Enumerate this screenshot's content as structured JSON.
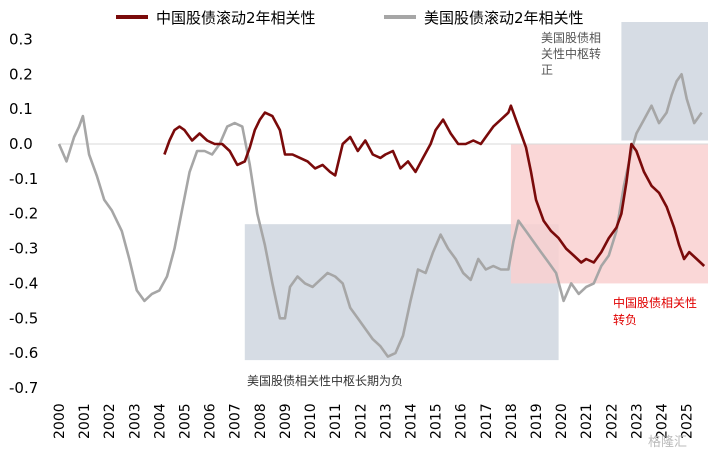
{
  "colors": {
    "cn": "#7a0a0a",
    "us": "#a6a6a6",
    "gray_box": "#d6dce4",
    "red_box": "#f9d0d0",
    "zero_line": "#d9d9d9",
    "neg_annotation": "#e00000"
  },
  "legend": {
    "cn": "中国股债滚动2年相关性",
    "us": "美国股债滚动2年相关性"
  },
  "annotations": {
    "us_positive_lines": [
      "美国股债相",
      "关性中枢转",
      "正"
    ],
    "us_negative": "美国股债相关性中枢长期为负",
    "cn_negative_lines": [
      "中国股债相关性",
      "转负"
    ]
  },
  "watermark": "格隆汇",
  "chart_data": {
    "type": "line",
    "legend_position": "top",
    "ylim": [
      -0.7,
      0.35
    ],
    "yticks": [
      "0.3",
      "0.2",
      "0.1",
      "0.0",
      "-0.1",
      "-0.2",
      "-0.3",
      "-0.4",
      "-0.5",
      "-0.6",
      "-0.7"
    ],
    "xlim": [
      2000.0,
      2025.85
    ],
    "xticks": [
      "2000",
      "2001",
      "2002",
      "2003",
      "2004",
      "2005",
      "2006",
      "2007",
      "2008",
      "2009",
      "2010",
      "2011",
      "2012",
      "2013",
      "2014",
      "2015",
      "2016",
      "2017",
      "2018",
      "2019",
      "2020",
      "2021",
      "2022",
      "2023",
      "2024",
      "2025"
    ],
    "grid": false,
    "shaded_regions": [
      {
        "x": [
          2007.4,
          2019.9
        ],
        "y": [
          -0.62,
          -0.23
        ],
        "color": "gray"
      },
      {
        "x": [
          2022.4,
          2025.85
        ],
        "y": [
          0.01,
          0.4
        ],
        "color": "gray"
      },
      {
        "x": [
          2018.0,
          2025.85
        ],
        "y": [
          -0.4,
          0.0
        ],
        "color": "red"
      }
    ],
    "series": [
      {
        "name": "中国股债滚动2年相关性",
        "x": [
          2004.2,
          2004.4,
          2004.6,
          2004.8,
          2005.0,
          2005.3,
          2005.6,
          2005.9,
          2006.2,
          2006.5,
          2006.8,
          2007.1,
          2007.4,
          2007.6,
          2007.8,
          2008.0,
          2008.2,
          2008.5,
          2008.8,
          2009.0,
          2009.3,
          2009.6,
          2009.9,
          2010.2,
          2010.5,
          2010.8,
          2011.0,
          2011.3,
          2011.6,
          2011.9,
          2012.2,
          2012.5,
          2012.8,
          2013.0,
          2013.3,
          2013.6,
          2013.9,
          2014.2,
          2014.5,
          2014.8,
          2015.0,
          2015.3,
          2015.6,
          2015.9,
          2016.2,
          2016.5,
          2016.8,
          2017.0,
          2017.3,
          2017.6,
          2017.9,
          2018.0,
          2018.2,
          2018.4,
          2018.6,
          2018.8,
          2019.0,
          2019.3,
          2019.6,
          2019.9,
          2020.2,
          2020.5,
          2020.8,
          2021.0,
          2021.3,
          2021.6,
          2021.9,
          2022.2,
          2022.4,
          2022.6,
          2022.8,
          2023.0,
          2023.3,
          2023.6,
          2023.9,
          2024.2,
          2024.5,
          2024.7,
          2024.9,
          2025.1,
          2025.4,
          2025.7
        ],
        "y": [
          -0.03,
          0.01,
          0.04,
          0.05,
          0.04,
          0.01,
          0.03,
          0.01,
          0.0,
          0.0,
          -0.02,
          -0.06,
          -0.05,
          -0.01,
          0.04,
          0.07,
          0.09,
          0.08,
          0.04,
          -0.03,
          -0.03,
          -0.04,
          -0.05,
          -0.07,
          -0.06,
          -0.08,
          -0.09,
          0.0,
          0.02,
          -0.02,
          0.01,
          -0.03,
          -0.04,
          -0.03,
          -0.02,
          -0.07,
          -0.05,
          -0.08,
          -0.04,
          0.0,
          0.04,
          0.07,
          0.03,
          0.0,
          0.0,
          0.01,
          0.0,
          0.02,
          0.05,
          0.07,
          0.09,
          0.11,
          0.07,
          0.03,
          -0.01,
          -0.08,
          -0.16,
          -0.22,
          -0.25,
          -0.27,
          -0.3,
          -0.32,
          -0.34,
          -0.33,
          -0.34,
          -0.31,
          -0.27,
          -0.24,
          -0.2,
          -0.11,
          0.0,
          -0.02,
          -0.08,
          -0.12,
          -0.14,
          -0.18,
          -0.24,
          -0.29,
          -0.33,
          -0.31,
          -0.33,
          -0.35
        ]
      },
      {
        "name": "美国股债滚动2年相关性",
        "x": [
          2000.0,
          2000.3,
          2000.6,
          2000.8,
          2000.95,
          2001.2,
          2001.5,
          2001.8,
          2002.1,
          2002.5,
          2002.8,
          2003.1,
          2003.4,
          2003.7,
          2004.0,
          2004.3,
          2004.6,
          2004.9,
          2005.2,
          2005.5,
          2005.8,
          2006.1,
          2006.4,
          2006.7,
          2007.0,
          2007.3,
          2007.6,
          2007.9,
          2008.2,
          2008.5,
          2008.8,
          2009.0,
          2009.2,
          2009.5,
          2009.8,
          2010.1,
          2010.4,
          2010.7,
          2011.0,
          2011.3,
          2011.6,
          2011.9,
          2012.2,
          2012.5,
          2012.8,
          2013.1,
          2013.4,
          2013.7,
          2014.0,
          2014.3,
          2014.6,
          2014.9,
          2015.2,
          2015.5,
          2015.8,
          2016.1,
          2016.4,
          2016.7,
          2017.0,
          2017.3,
          2017.6,
          2017.9,
          2018.1,
          2018.3,
          2018.6,
          2018.9,
          2019.2,
          2019.5,
          2019.8,
          2020.1,
          2020.4,
          2020.7,
          2021.0,
          2021.3,
          2021.6,
          2021.9,
          2022.2,
          2022.5,
          2022.8,
          2023.0,
          2023.3,
          2023.6,
          2023.9,
          2024.2,
          2024.4,
          2024.6,
          2024.8,
          2025.0,
          2025.3,
          2025.6
        ],
        "y": [
          0.0,
          -0.05,
          0.02,
          0.05,
          0.08,
          -0.03,
          -0.09,
          -0.16,
          -0.19,
          -0.25,
          -0.33,
          -0.42,
          -0.45,
          -0.43,
          -0.42,
          -0.38,
          -0.3,
          -0.19,
          -0.08,
          -0.02,
          -0.02,
          -0.03,
          0.0,
          0.05,
          0.06,
          0.05,
          -0.06,
          -0.2,
          -0.29,
          -0.4,
          -0.5,
          -0.5,
          -0.41,
          -0.38,
          -0.4,
          -0.41,
          -0.39,
          -0.37,
          -0.38,
          -0.4,
          -0.47,
          -0.5,
          -0.53,
          -0.56,
          -0.58,
          -0.61,
          -0.6,
          -0.55,
          -0.45,
          -0.36,
          -0.37,
          -0.31,
          -0.26,
          -0.3,
          -0.33,
          -0.37,
          -0.39,
          -0.33,
          -0.36,
          -0.35,
          -0.36,
          -0.36,
          -0.28,
          -0.22,
          -0.25,
          -0.28,
          -0.31,
          -0.34,
          -0.37,
          -0.45,
          -0.4,
          -0.43,
          -0.41,
          -0.4,
          -0.35,
          -0.32,
          -0.25,
          -0.12,
          -0.02,
          0.03,
          0.07,
          0.11,
          0.06,
          0.09,
          0.14,
          0.18,
          0.2,
          0.13,
          0.06,
          0.09
        ]
      }
    ]
  }
}
